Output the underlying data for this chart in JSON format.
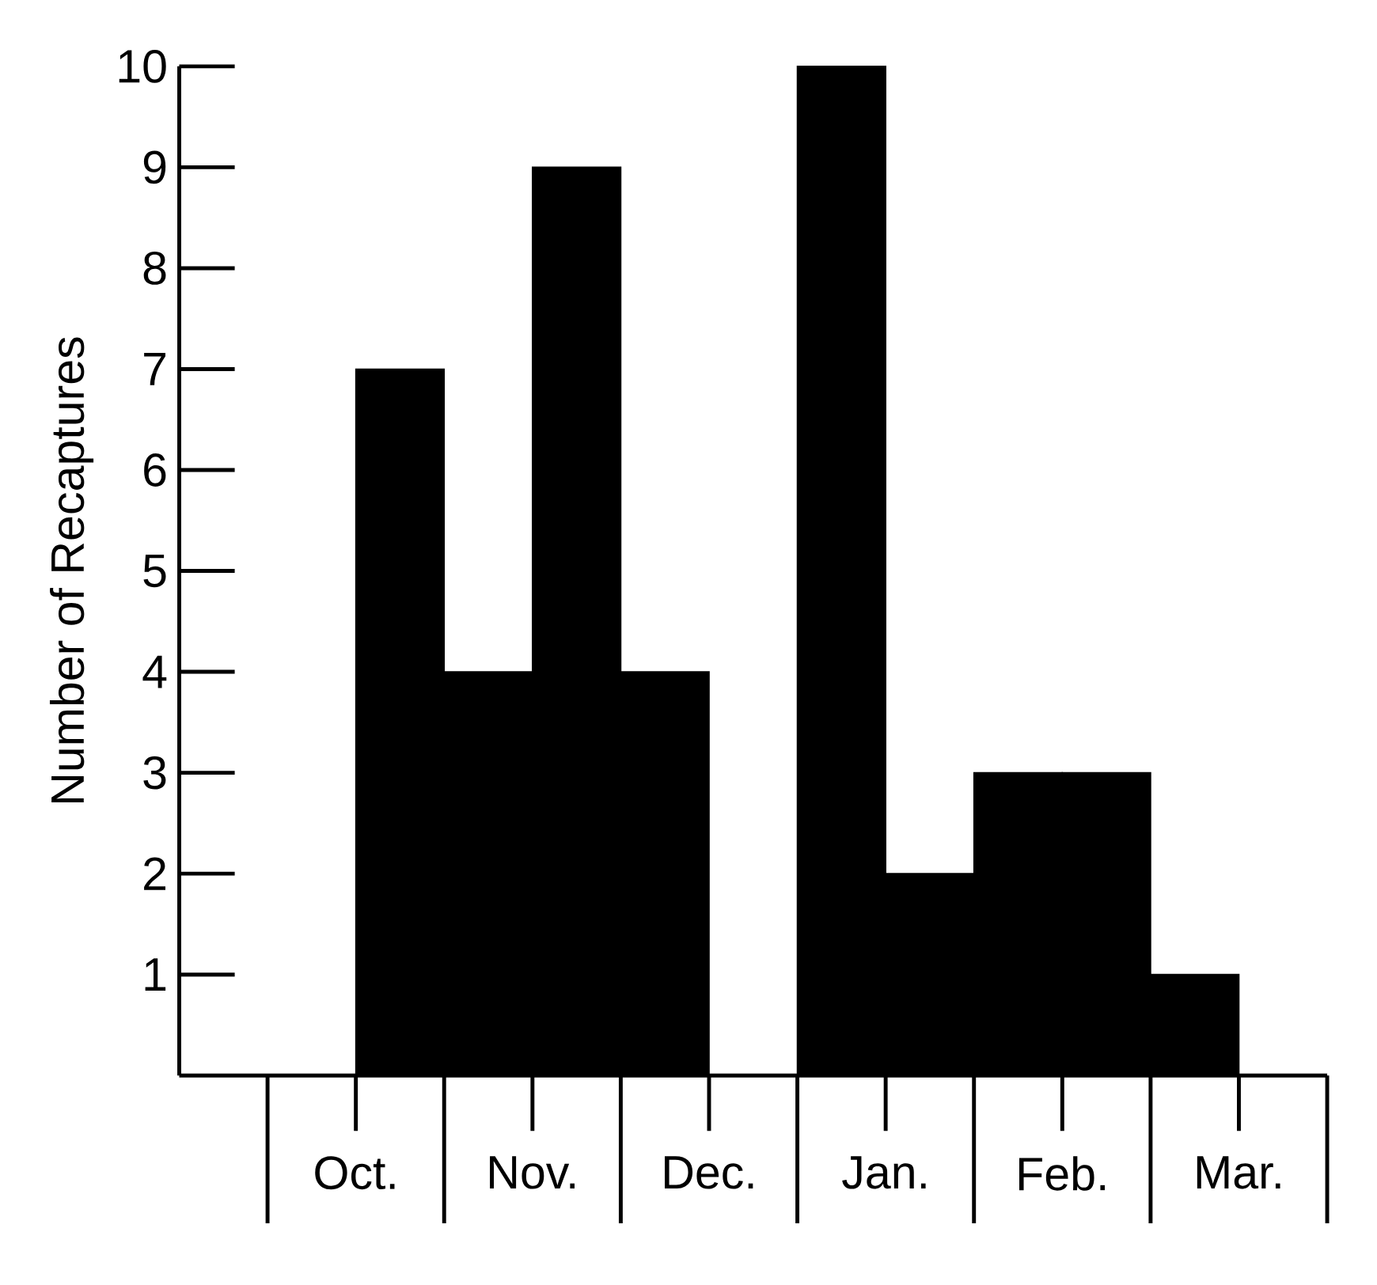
{
  "chart_data": {
    "type": "bar",
    "ylabel": "Number of Recaptures",
    "categories": [
      "Oct.",
      null,
      "Nov.",
      null,
      "Dec.",
      null,
      "Jan.",
      null,
      "Feb.",
      null,
      "Mar.",
      null
    ],
    "values": [
      0,
      7,
      4,
      9,
      4,
      0,
      10,
      2,
      3,
      3,
      1,
      0
    ],
    "color": "#000000",
    "ylim": [
      0,
      10
    ],
    "yticks": [
      1,
      2,
      3,
      4,
      5,
      6,
      7,
      8,
      9,
      10
    ]
  }
}
